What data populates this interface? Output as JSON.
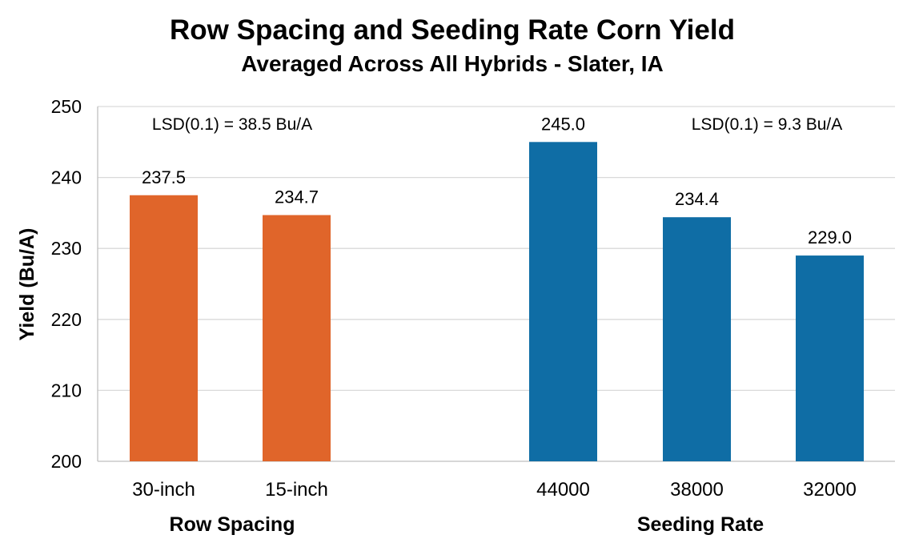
{
  "chart_data": {
    "type": "bar",
    "title": "Row Spacing and Seeding Rate Corn Yield",
    "subtitle": "Averaged Across All Hybrids - Slater, IA",
    "ylabel": "Yield (Bu/A)",
    "ylim": [
      200,
      250
    ],
    "yticks": [
      "200",
      "210",
      "220",
      "230",
      "240",
      "250"
    ],
    "grid": true,
    "groups": [
      {
        "name": "Row Spacing",
        "lsd": "LSD(0.1) = 38.5 Bu/A",
        "color": "#E0652A",
        "categories": [
          "30-inch",
          "15-inch"
        ],
        "values": [
          237.5,
          234.7
        ],
        "labels": [
          "237.5",
          "234.7"
        ]
      },
      {
        "name": "Seeding Rate",
        "lsd": "LSD(0.1) = 9.3 Bu/A",
        "color": "#0F6DA5",
        "categories": [
          "44000",
          "38000",
          "32000"
        ],
        "values": [
          245.0,
          234.4,
          229.0
        ],
        "labels": [
          "245.0",
          "234.4",
          "229.0"
        ]
      }
    ]
  }
}
